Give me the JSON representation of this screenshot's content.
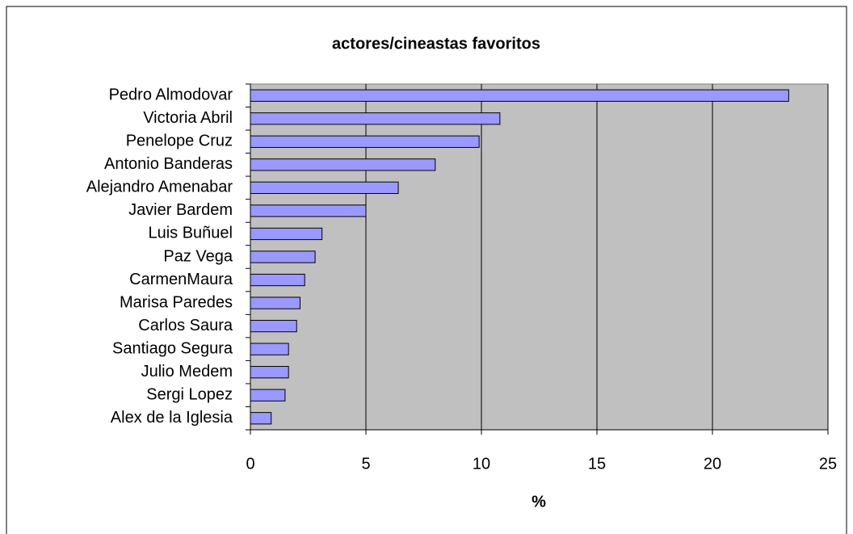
{
  "chart_data": {
    "type": "bar",
    "orientation": "horizontal",
    "title": "actores/cineastas favoritos",
    "xlabel": "%",
    "categories": [
      "Pedro Almodovar",
      "Victoria Abril",
      "Penelope Cruz",
      "Antonio Banderas",
      "Alejandro Amenabar",
      "Javier Bardem",
      "Luis Buñuel",
      "Paz Vega",
      "CarmenMaura",
      "Marisa Paredes",
      "Carlos Saura",
      "Santiago Segura",
      "Julio Medem",
      "Sergi Lopez",
      "Alex de la Iglesia"
    ],
    "values": [
      23.3,
      10.8,
      9.9,
      8.0,
      6.4,
      5.0,
      3.1,
      2.8,
      2.35,
      2.15,
      2.0,
      1.65,
      1.65,
      1.5,
      0.9
    ],
    "color": "#9999ff",
    "xlim": [
      0,
      25
    ],
    "xticks": [
      0,
      5,
      10,
      15,
      20,
      25
    ],
    "grid": true
  }
}
